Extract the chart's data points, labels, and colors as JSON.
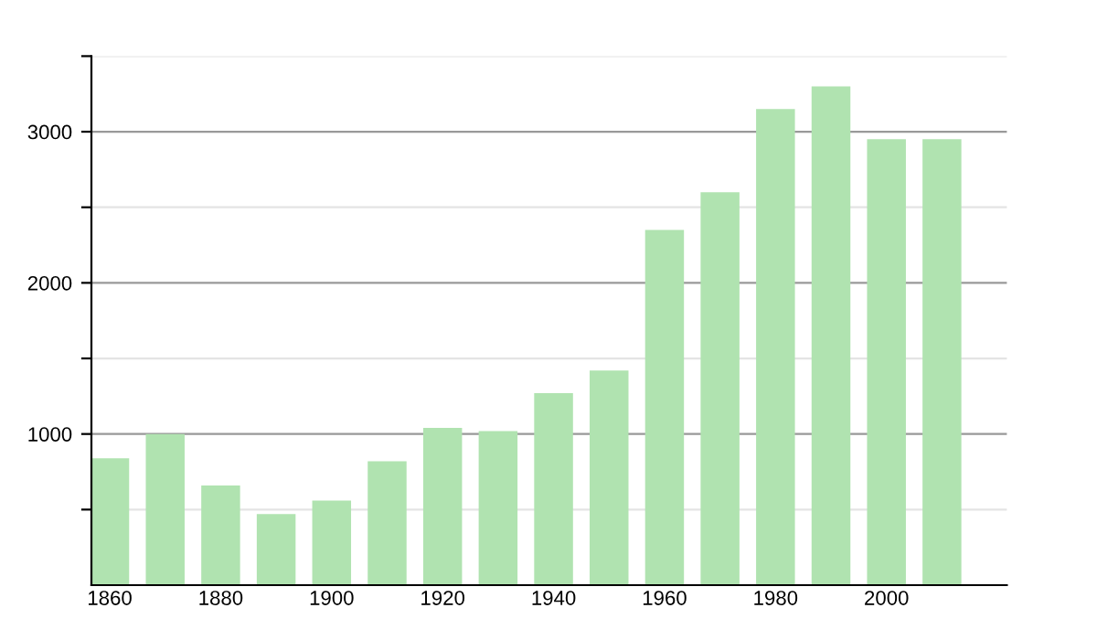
{
  "chart_data": {
    "type": "bar",
    "x": [
      1860,
      1870,
      1880,
      1890,
      1900,
      1910,
      1920,
      1930,
      1940,
      1950,
      1960,
      1970,
      1980,
      1990,
      2000,
      2010
    ],
    "values": [
      840,
      1000,
      660,
      470,
      560,
      820,
      1040,
      1020,
      1270,
      1420,
      2350,
      2600,
      3150,
      3300,
      2950,
      2950
    ],
    "color": "#b0e3b0",
    "xlim": [
      1856.7,
      2021.7
    ],
    "xticks": [
      1860,
      1880,
      1900,
      1920,
      1940,
      1960,
      1980,
      2000
    ],
    "ylim": [
      0,
      3500
    ],
    "yticks": [
      {
        "value": 500,
        "label": null
      },
      1000,
      {
        "value": 1500,
        "label": null
      },
      2000,
      {
        "value": 2500,
        "label": null
      },
      3000,
      {
        "value": 3500,
        "label": null
      }
    ],
    "grid": "y",
    "legend": false
  }
}
